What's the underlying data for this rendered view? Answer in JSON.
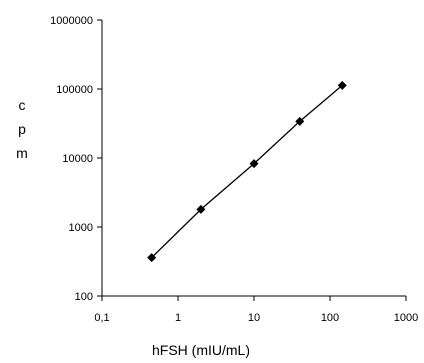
{
  "chart_data": {
    "type": "scatter",
    "title": "",
    "xlabel": "hFSH (mIU/mL)",
    "ylabel_letters": [
      "c",
      "p",
      "m"
    ],
    "xscale": "log",
    "yscale": "log",
    "xlim": [
      0.1,
      1000
    ],
    "ylim": [
      100,
      1000000
    ],
    "x_ticks": [
      0.1,
      1,
      10,
      100,
      1000
    ],
    "x_tick_labels": [
      "0,1",
      "1",
      "10",
      "100",
      "1000"
    ],
    "y_ticks": [
      100,
      1000,
      10000,
      100000,
      1000000
    ],
    "y_tick_labels": [
      "100",
      "1000",
      "10000",
      "100000",
      "1000000"
    ],
    "grid": false,
    "legend": "none",
    "series": [
      {
        "marker": "diamond",
        "line": true,
        "color": "#000000",
        "x": [
          0.45,
          2,
          10,
          40,
          145
        ],
        "y": [
          360,
          1800,
          8300,
          34000,
          113000
        ]
      }
    ]
  }
}
